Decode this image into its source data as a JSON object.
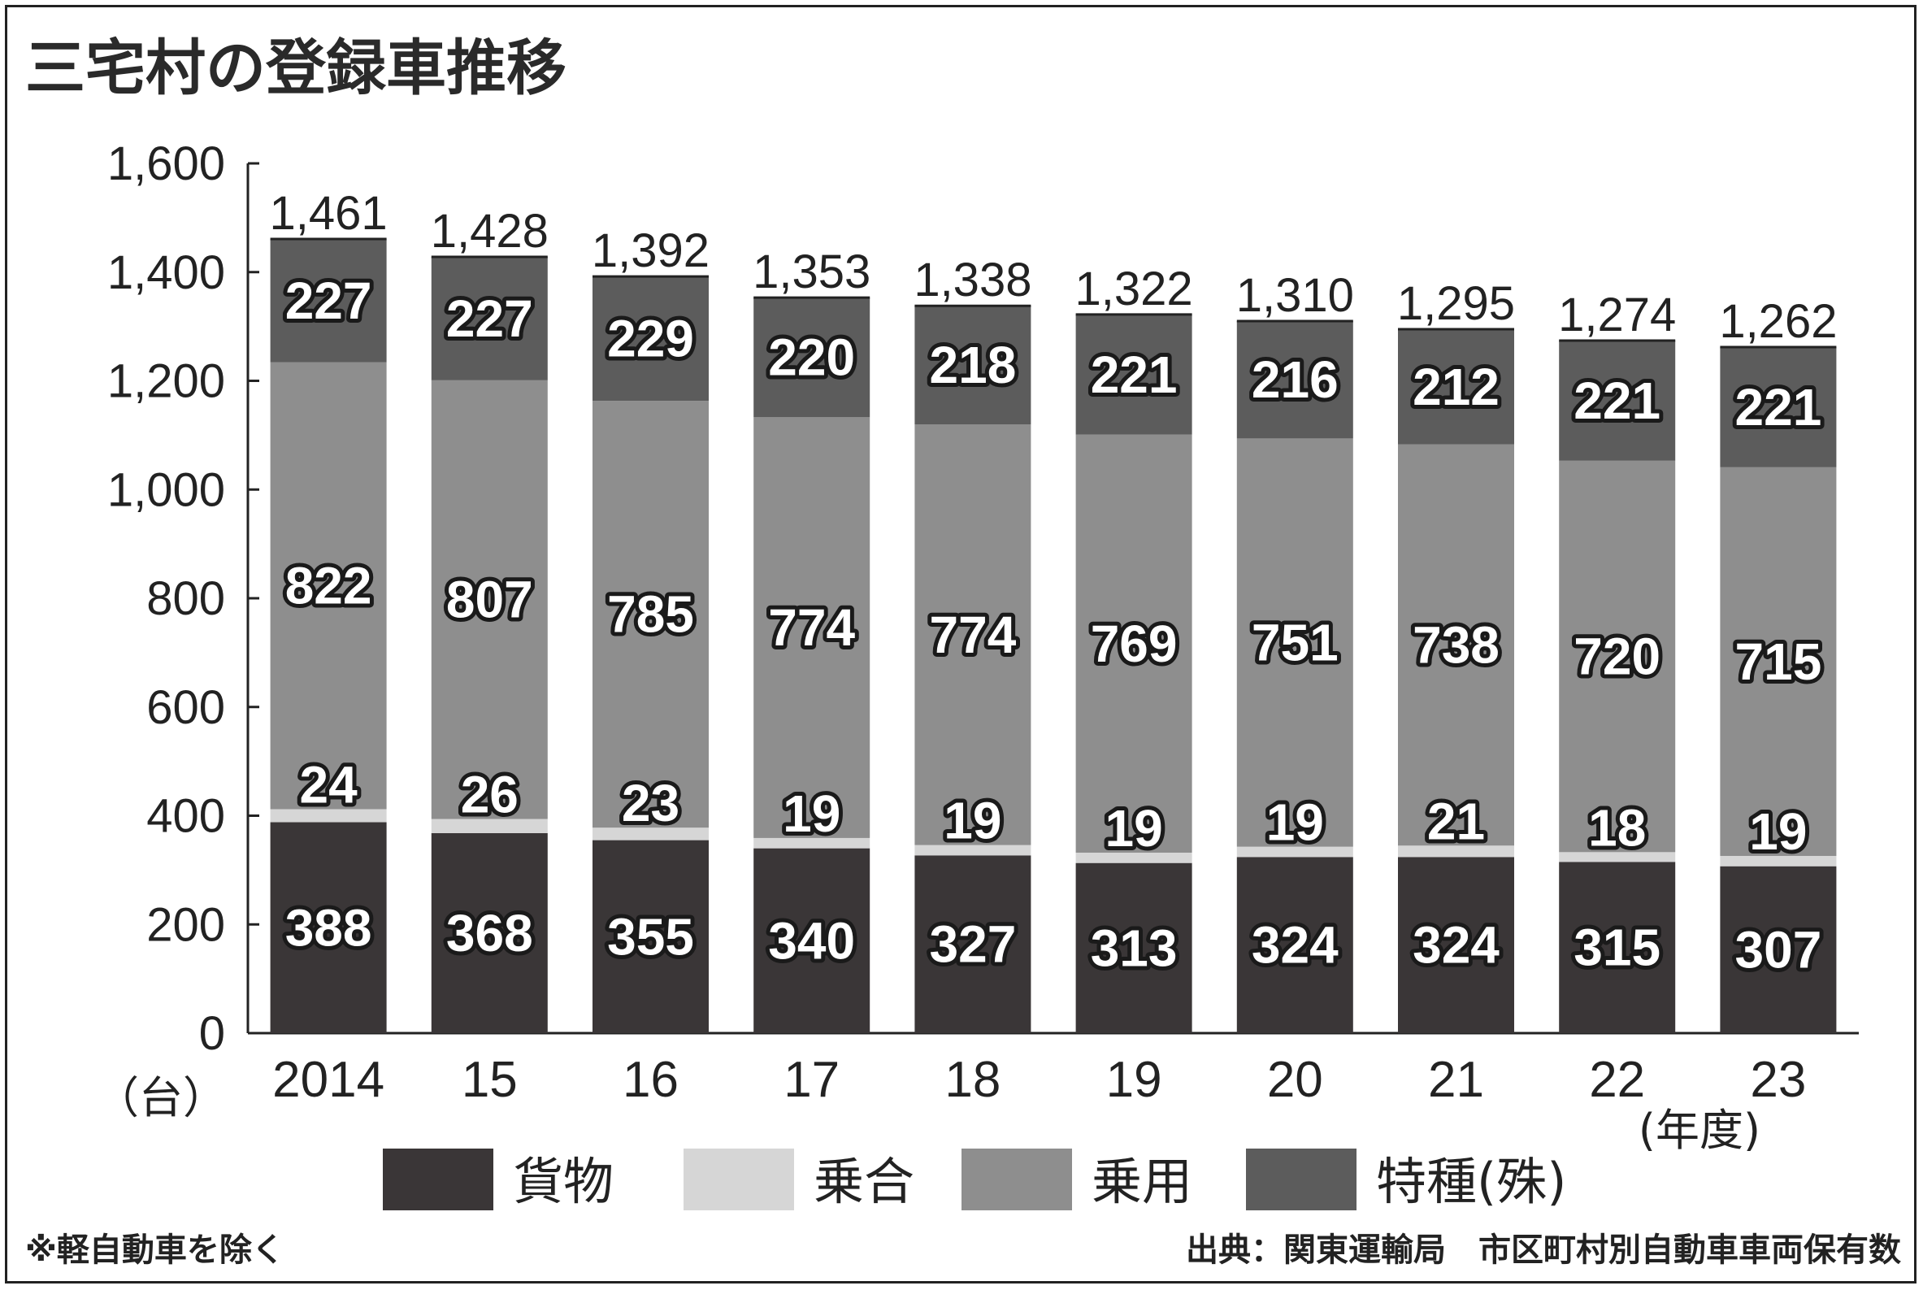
{
  "chart_data": {
    "type": "bar",
    "stacked": true,
    "title": "三宅村の登録車推移",
    "unit_label": "（台）",
    "x_unit_label": "(年度)",
    "categories": [
      "2014",
      "15",
      "16",
      "17",
      "18",
      "19",
      "20",
      "21",
      "22",
      "23"
    ],
    "totals": [
      "1,461",
      "1,428",
      "1,392",
      "1,353",
      "1,338",
      "1,322",
      "1,310",
      "1,295",
      "1,274",
      "1,262"
    ],
    "y_ticks": [
      "0",
      "200",
      "400",
      "600",
      "800",
      "1,000",
      "1,200",
      "1,400",
      "1,600"
    ],
    "ylim": [
      0,
      1600
    ],
    "grid": false,
    "legend_position": "bottom",
    "series": [
      {
        "name": "貨物",
        "color": "#3a3637",
        "values": [
          388,
          368,
          355,
          340,
          327,
          313,
          324,
          324,
          315,
          307
        ]
      },
      {
        "name": "乗合",
        "color": "#d6d6d6",
        "values": [
          24,
          26,
          23,
          19,
          19,
          19,
          19,
          21,
          18,
          19
        ]
      },
      {
        "name": "乗用",
        "color": "#8e8e8e",
        "values": [
          822,
          807,
          785,
          774,
          774,
          769,
          751,
          738,
          720,
          715
        ]
      },
      {
        "name": "特種(殊)",
        "color": "#5c5c5c",
        "values": [
          227,
          227,
          229,
          220,
          218,
          221,
          216,
          212,
          221,
          221
        ]
      }
    ],
    "footnote": "※軽自動車を除く",
    "source": "出典：関東運輸局　市区町村別自動車車両保有数"
  }
}
